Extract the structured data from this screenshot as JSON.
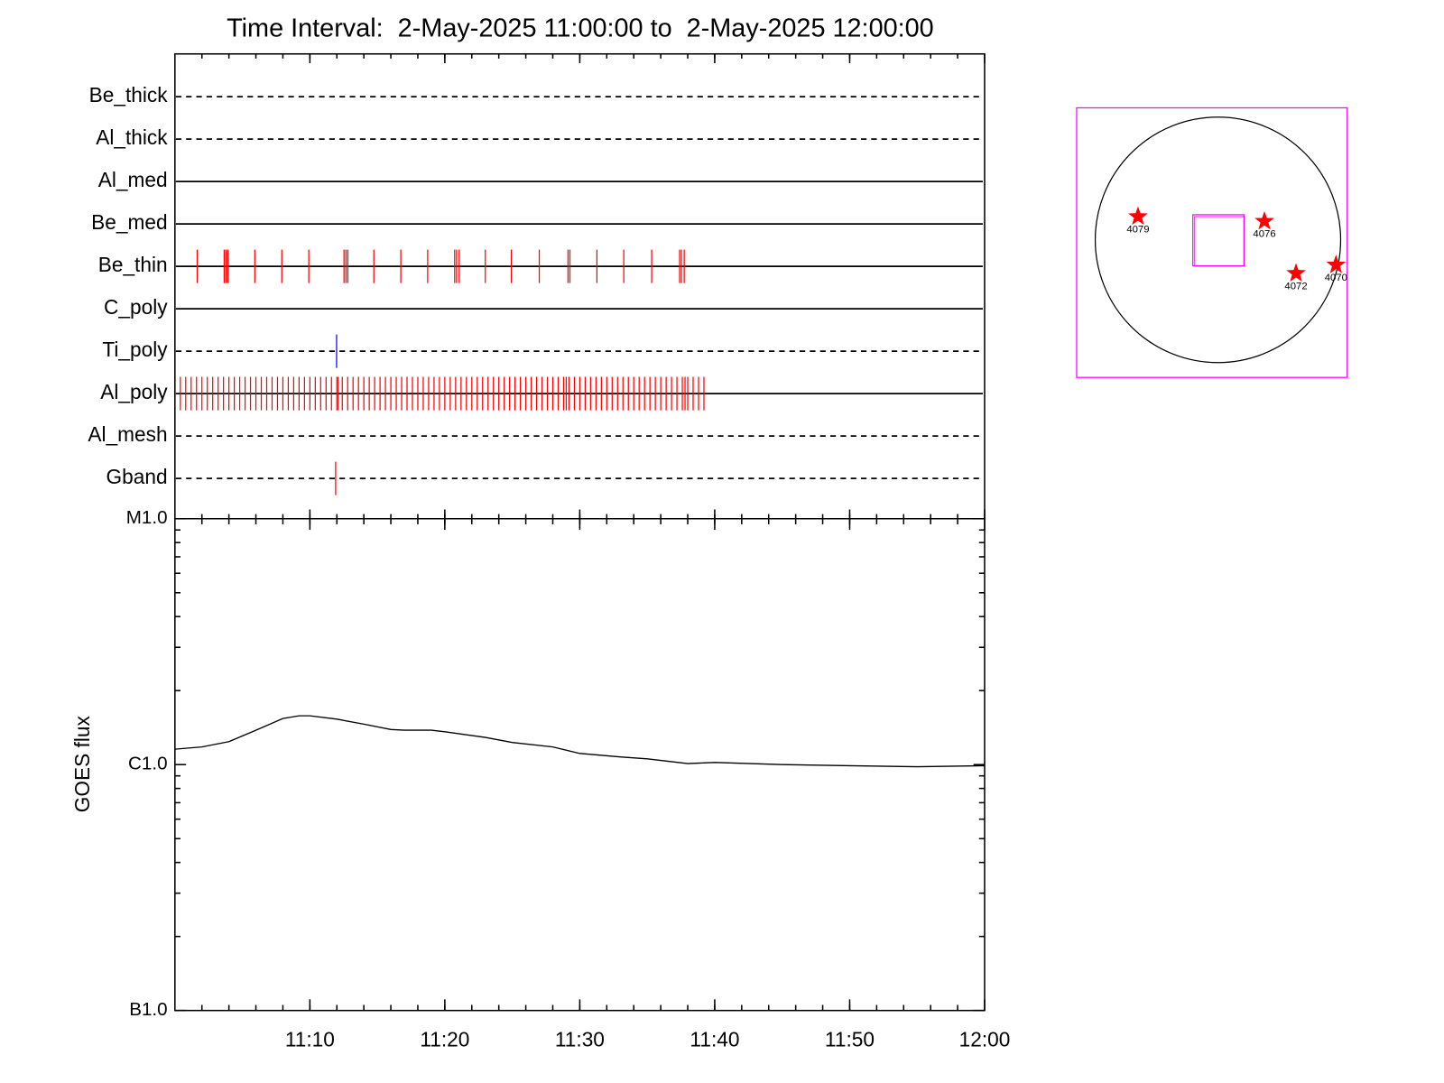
{
  "chart_data": [
    {
      "type": "event",
      "title": "Time Interval:  2-May-2025 11:00:00 to  2-May-2025 12:00:00",
      "xlim": [
        0,
        60
      ],
      "series": [
        {
          "name": "Be_thick",
          "line": "dashed",
          "color": "#ff0000",
          "x": []
        },
        {
          "name": "Al_thick",
          "line": "dashed",
          "color": "#ff0000",
          "x": []
        },
        {
          "name": "Al_med",
          "line": "solid",
          "color": "#ff0000",
          "x": []
        },
        {
          "name": "Be_med",
          "line": "solid",
          "color": "#ff0000",
          "x": []
        },
        {
          "name": "Be_thin",
          "line": "solid",
          "color": "#ff0000",
          "x": [
            1.65,
            3.65,
            3.79,
            3.93,
            5.92,
            7.92,
            9.92,
            12.53,
            12.67,
            12.81,
            14.74,
            16.74,
            18.73,
            20.73,
            20.87,
            21.07,
            23.0,
            24.93,
            27.0,
            29.13,
            29.27,
            31.27,
            33.26,
            35.33,
            37.4,
            37.53,
            37.74
          ]
        },
        {
          "name": "C_poly",
          "line": "solid",
          "color": "#ff0000",
          "x": []
        },
        {
          "name": "Ti_poly",
          "line": "dashed",
          "color": "#0000ff",
          "x": [
            11.98
          ]
        },
        {
          "name": "Al_poly",
          "line": "solid",
          "color": "#ff0000",
          "x": [
            0.4,
            0.8,
            1.2,
            1.6,
            2,
            2.4,
            2.8,
            3.2,
            3.6,
            4,
            4.4,
            4.8,
            5.2,
            5.6,
            6,
            6.4,
            6.8,
            7.2,
            7.6,
            8,
            8.4,
            8.8,
            9.2,
            9.6,
            10,
            10.4,
            10.8,
            11.2,
            11.6,
            12,
            12.1,
            12.4,
            12.8,
            13.2,
            13.6,
            14,
            14.4,
            14.8,
            15.2,
            15.6,
            16,
            16.4,
            16.8,
            17.2,
            17.6,
            18,
            18.4,
            18.8,
            19.2,
            19.6,
            20,
            20.4,
            20.8,
            21.2,
            21.6,
            22,
            22.4,
            22.8,
            23.2,
            23.6,
            24,
            24.4,
            24.8,
            25.2,
            25.6,
            26,
            26.4,
            26.8,
            27.2,
            27.6,
            28,
            28.4,
            28.8,
            29.0,
            29.2,
            29.6,
            30,
            30.4,
            30.8,
            31.2,
            31.6,
            32,
            32.4,
            32.8,
            33.2,
            33.6,
            34,
            34.4,
            34.8,
            35.2,
            35.6,
            36,
            36.4,
            36.8,
            37.2,
            37.6,
            37.8,
            38,
            38.4,
            38.8,
            39.2
          ]
        },
        {
          "name": "Al_mesh",
          "line": "dashed",
          "color": "#ff0000",
          "x": []
        },
        {
          "name": "Gband",
          "line": "dashed",
          "color": "#ff0000",
          "x": [
            11.91
          ]
        }
      ]
    },
    {
      "type": "line",
      "ylabel": "GOES flux",
      "log_y": true,
      "color": "#000000",
      "x": [
        0,
        2,
        4,
        6,
        8,
        9.2,
        10,
        12,
        14,
        16,
        17,
        19,
        20,
        23,
        25,
        28,
        30,
        33,
        35,
        38,
        40,
        45,
        50,
        55,
        60
      ],
      "values": [
        1.155e-06,
        1.18e-06,
        1.24e-06,
        1.38e-06,
        1.54e-06,
        1.58e-06,
        1.58e-06,
        1.53e-06,
        1.46e-06,
        1.39e-06,
        1.38e-06,
        1.38e-06,
        1.36e-06,
        1.29e-06,
        1.23e-06,
        1.18e-06,
        1.11e-06,
        1.075e-06,
        1.055e-06,
        1.01e-06,
        1.02e-06,
        1e-06,
        9.9e-07,
        9.8e-07,
        9.9e-07
      ],
      "xlim": [
        0,
        60
      ],
      "xticks": [
        {
          "value": 10,
          "label": "11:10"
        },
        {
          "value": 20,
          "label": "11:20"
        },
        {
          "value": 30,
          "label": "11:30"
        },
        {
          "value": 40,
          "label": "11:40"
        },
        {
          "value": 50,
          "label": "11:50"
        },
        {
          "value": 60,
          "label": "12:00"
        }
      ],
      "ylim": [
        1e-07,
        1e-05
      ],
      "yticks": [
        {
          "value": 1e-07,
          "label": "B1.0"
        },
        {
          "value": 1e-06,
          "label": "C1.0"
        },
        {
          "value": 1e-05,
          "label": "M1.0"
        }
      ]
    },
    {
      "type": "map",
      "color": "#ff0000",
      "box_color": "#ff00ff",
      "regions": [
        {
          "label": "4079"
        },
        {
          "label": "4076"
        },
        {
          "label": "4072"
        },
        {
          "label": "4070"
        }
      ]
    }
  ]
}
